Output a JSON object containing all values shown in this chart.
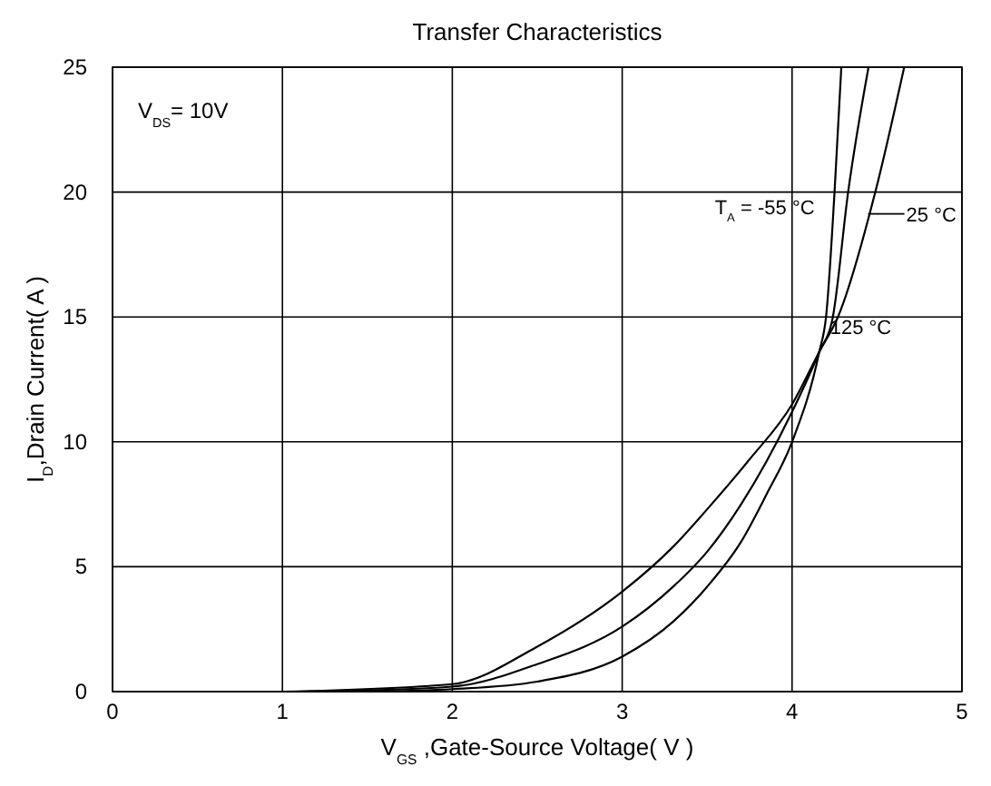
{
  "chart_data": {
    "type": "line",
    "title": "Transfer Characteristics",
    "xlabel": "V$_{GS}$ ,Gate-Source Voltage( V )",
    "ylabel": "I$_{D}$,Drain Current( A )",
    "annotations": [
      "V$_{DS}$= 10V"
    ],
    "series": [
      {
        "name": "T$_{A}$ = -55 °C",
        "color": "#000000",
        "x": [
          1.5,
          2,
          2.5,
          3,
          3.3,
          3.5,
          3.7,
          3.85,
          4,
          4.16,
          4.2,
          4.25,
          4.29
        ],
        "values": [
          0,
          0.1,
          0.4,
          1.4,
          2.8,
          4.2,
          6.0,
          7.9,
          10,
          13.6,
          15,
          20,
          25
        ]
      },
      {
        "name": "25 °C",
        "color": "#000000",
        "x": [
          1.2,
          2,
          2.5,
          3,
          3.3,
          3.5,
          3.7,
          4,
          4.16,
          4.24,
          4.33,
          4.45
        ],
        "values": [
          0,
          0.2,
          1.1,
          2.6,
          4.2,
          5.6,
          7.5,
          11.2,
          13.6,
          15,
          20,
          25
        ]
      },
      {
        "name": "125 °C",
        "color": "#000000",
        "x": [
          1,
          2,
          2.5,
          3,
          3.3,
          3.5,
          3.75,
          4,
          4.16,
          4.27,
          4.49,
          4.66
        ],
        "values": [
          0,
          0.3,
          1.8,
          4,
          5.8,
          7.3,
          9.3,
          11.5,
          13.6,
          15,
          20,
          25
        ]
      }
    ],
    "xlim": [
      0,
      5
    ],
    "ylim": [
      0,
      25
    ],
    "xticks": [
      0,
      1,
      2,
      3,
      4,
      5
    ],
    "yticks": [
      0,
      5,
      10,
      15,
      20,
      25
    ],
    "grid": true,
    "line_style": "solid"
  }
}
